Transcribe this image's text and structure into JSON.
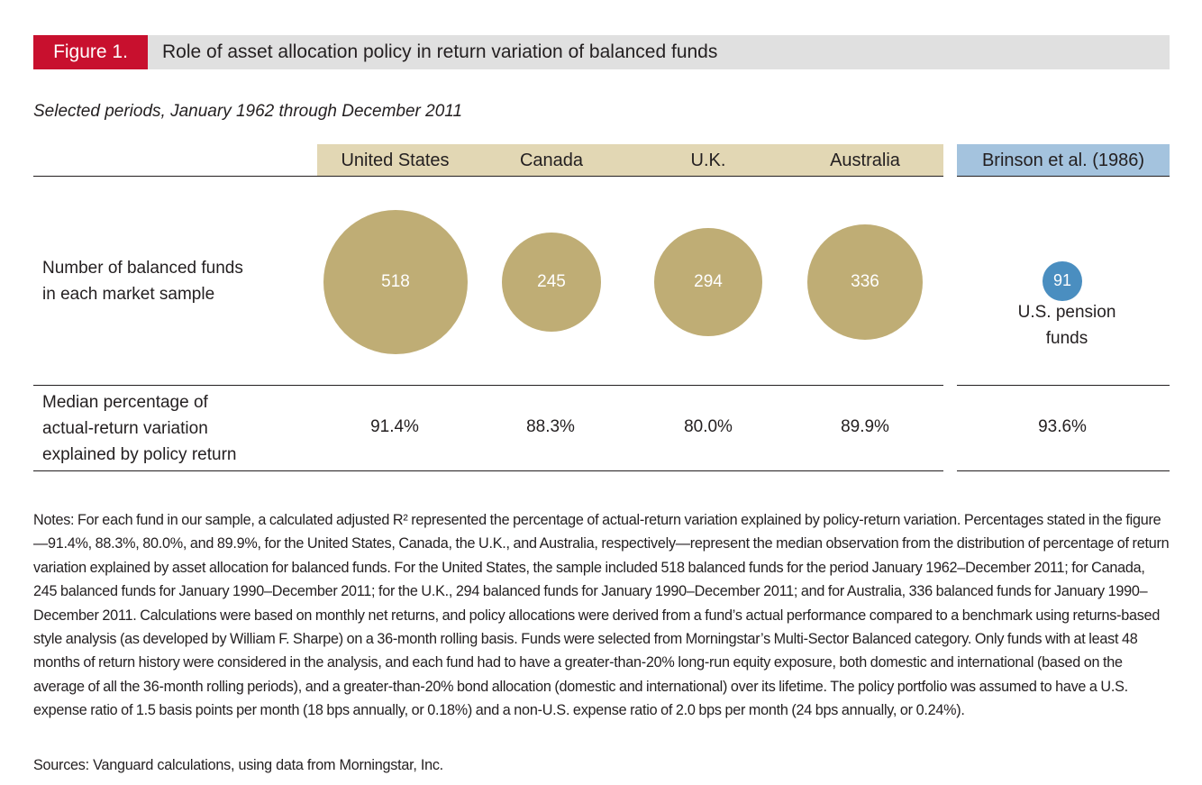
{
  "figure": {
    "label": "Figure 1.",
    "title": "Role of asset allocation policy in return variation of balanced funds",
    "subtitle": "Selected periods, January 1962 through December 2011"
  },
  "columns": {
    "us": "United States",
    "canada": "Canada",
    "uk": "U.K.",
    "australia": "Australia",
    "brinson": "Brinson et al. (1986)"
  },
  "rows": {
    "funds_label_line1": "Number of balanced funds",
    "funds_label_line2": "in each market sample",
    "median_label_line1": "Median percentage of",
    "median_label_line2": "actual-return variation",
    "median_label_line3": "explained by policy return"
  },
  "brinson_sublabel": {
    "line1": "U.S. pension",
    "line2": "funds"
  },
  "colors": {
    "accent_red": "#c8102e",
    "bubble_gold": "#bfad75",
    "bubble_blue": "#4a8ec0",
    "header_tan": "#e2d7b4",
    "header_blue": "#a4c3de"
  },
  "chart_data": {
    "type": "bubble-table",
    "categories": [
      "United States",
      "Canada",
      "U.K.",
      "Australia",
      "Brinson et al. (1986)"
    ],
    "fund_counts": [
      518,
      245,
      294,
      336,
      91
    ],
    "fund_counts_labels": [
      "518",
      "245",
      "294",
      "336",
      "91"
    ],
    "median_pct": [
      91.4,
      88.3,
      80.0,
      89.9,
      93.6
    ],
    "median_pct_labels": [
      "91.4%",
      "88.3%",
      "80.0%",
      "89.9%",
      "93.6%"
    ]
  },
  "notes": "Notes: For each fund in our sample, a calculated adjusted R² represented the percentage of actual-return variation explained by policy-return variation. Percentages stated in the figure—91.4%, 88.3%, 80.0%, and 89.9%, for the United States, Canada, the U.K., and Australia, respectively—represent the median observation from the distribution of percentage of return variation explained by asset allocation for balanced funds. For the United States, the sample included 518 balanced funds for the period January 1962–December 2011; for Canada, 245 balanced funds for January 1990–December 2011; for the U.K., 294 balanced funds for January 1990–December 2011; and for Australia, 336 balanced funds for January 1990–December 2011. Calculations were based on monthly net returns, and policy allocations were derived from a fund’s actual performance compared to a benchmark using returns-based style analysis (as developed by William F. Sharpe) on a 36-month rolling basis. Funds were selected from Morningstar’s Multi-Sector Balanced category. Only funds with at least 48 months of return history were considered in the analysis, and each fund had to have a greater-than-20% long-run equity exposure, both domestic and international (based on the average of all the 36-month rolling periods), and a greater-than-20% bond allocation (domestic and international) over its lifetime. The policy portfolio was assumed to have a U.S. expense ratio of 1.5 basis points per month (18 bps annually, or 0.18%) and a non-U.S. expense ratio of 2.0 bps per month (24 bps annually, or 0.24%).",
  "sources": "Sources: Vanguard calculations, using data from Morningstar, Inc."
}
